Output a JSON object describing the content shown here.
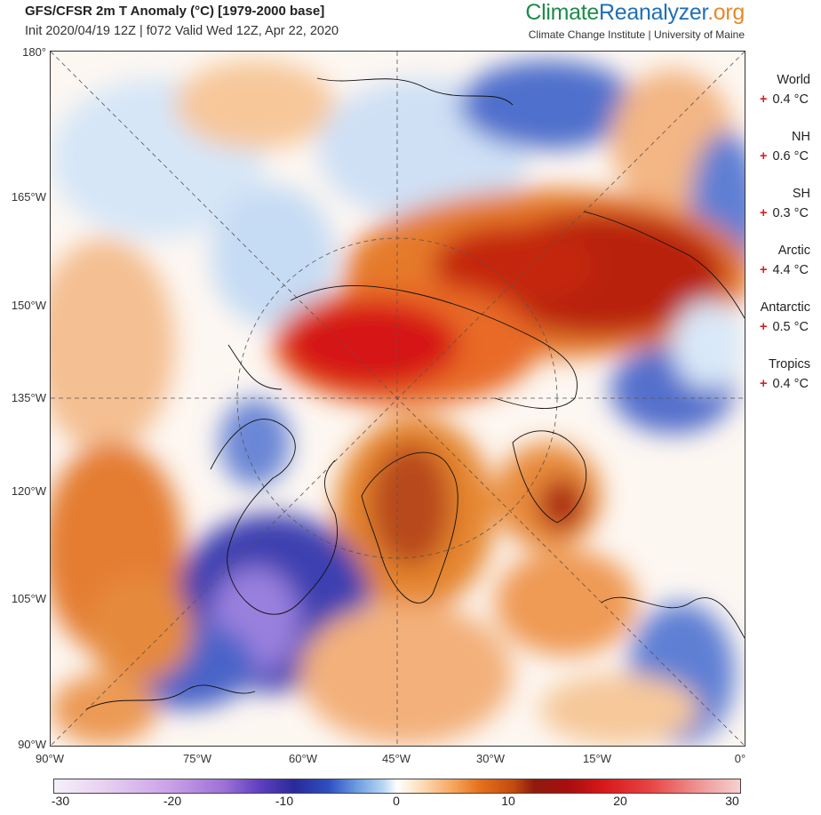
{
  "header": {
    "title": "GFS/CFSR 2m T Anomaly (°C) [1979-2000 base]",
    "subtitle": "Init 2020/04/19 12Z | f072 Valid Wed 12Z, Apr 22, 2020",
    "brand_part1": "Climate",
    "brand_part2": "Reanalyzer",
    "brand_part3": ".org",
    "brand_sub": "Climate Change Institute | University of Maine"
  },
  "axes": {
    "left_labels": [
      "180°",
      "165°W",
      "150°W",
      "135°W",
      "120°W",
      "105°W",
      "90°W"
    ],
    "bottom_labels": [
      "90°W",
      "75°W",
      "60°W",
      "45°W",
      "30°W",
      "15°W",
      "0°"
    ]
  },
  "stats": [
    {
      "name": "World",
      "sign": "+",
      "value": "0.4 °C"
    },
    {
      "name": "NH",
      "sign": "+",
      "value": "0.6 °C"
    },
    {
      "name": "SH",
      "sign": "+",
      "value": "0.3 °C"
    },
    {
      "name": "Arctic",
      "sign": "+",
      "value": "4.4 °C"
    },
    {
      "name": "Antarctic",
      "sign": "+",
      "value": "0.5 °C"
    },
    {
      "name": "Tropics",
      "sign": "+",
      "value": "0.4 °C"
    }
  ],
  "colorbar": {
    "ticks": [
      "-30",
      "-20",
      "-10",
      "0",
      "10",
      "20",
      "30"
    ],
    "min": -30,
    "max": 30
  },
  "colors": {
    "warm_strong": "#d01515",
    "warm_moderate": "#e5711c",
    "cold_strong": "#2a2a9a",
    "cold_moderate": "#6a9ae0"
  }
}
